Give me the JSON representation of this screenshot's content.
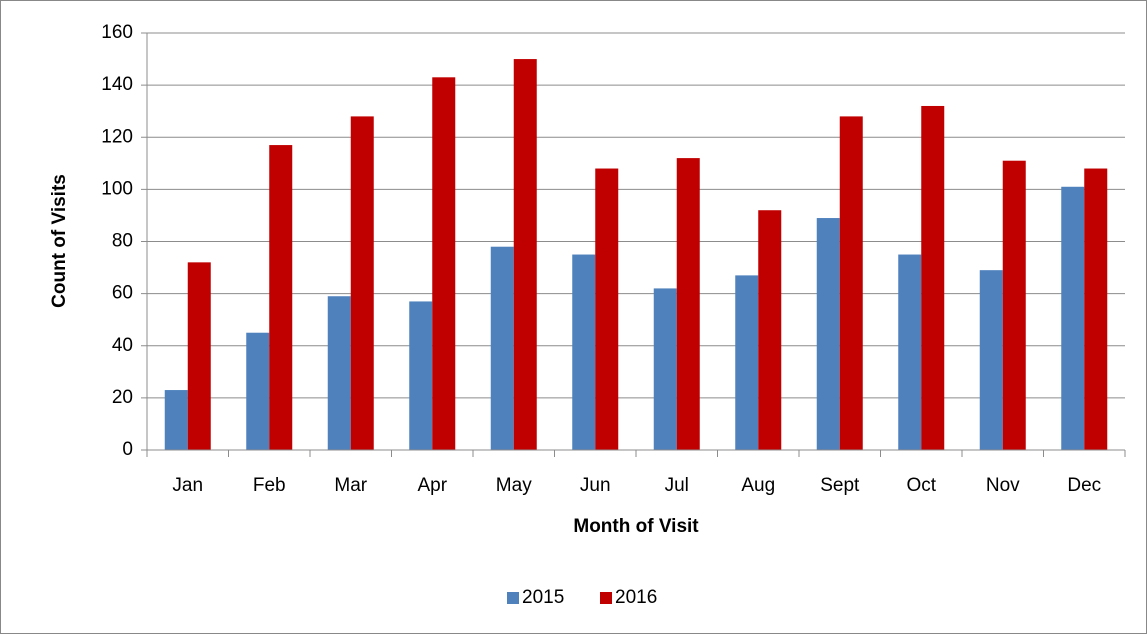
{
  "chart_data": {
    "type": "bar",
    "x_label": "Month of Visit",
    "y_label": "Count of Visits",
    "categories": [
      "Jan",
      "Feb",
      "Mar",
      "Apr",
      "May",
      "Jun",
      "Jul",
      "Aug",
      "Sept",
      "Oct",
      "Nov",
      "Dec"
    ],
    "series": [
      {
        "name": "2015",
        "color": "#4f81bd",
        "values": [
          23,
          45,
          59,
          57,
          78,
          75,
          62,
          67,
          89,
          75,
          69,
          101
        ]
      },
      {
        "name": "2016",
        "color": "#c00000",
        "values": [
          72,
          117,
          128,
          143,
          150,
          108,
          112,
          92,
          128,
          132,
          111,
          108
        ]
      }
    ],
    "ylim": [
      0,
      160
    ],
    "yticks": [
      0,
      20,
      40,
      60,
      80,
      100,
      120,
      140,
      160
    ],
    "grid": true,
    "legend": "bottom"
  }
}
